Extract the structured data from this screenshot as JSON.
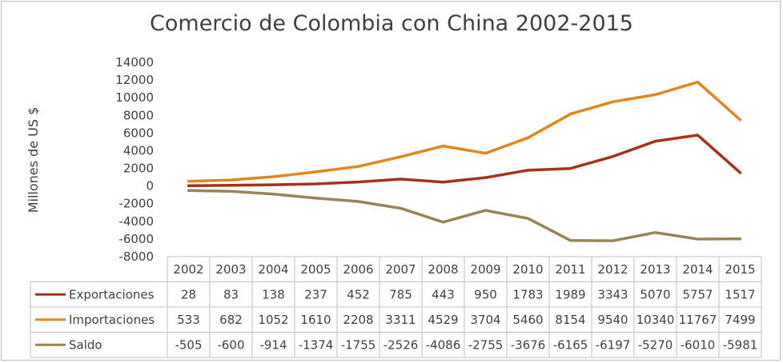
{
  "chart_data": {
    "type": "line",
    "title": "Comercio de Colombia con China 2002-2015",
    "xlabel": "",
    "ylabel": "Millones de US $",
    "ylim": [
      -8000,
      14000
    ],
    "yticks": [
      "14000",
      "12000",
      "10000",
      "8000",
      "6000",
      "4000",
      "2000",
      "0",
      "-2000",
      "-4000",
      "-6000",
      "-8000"
    ],
    "categories": [
      "2002",
      "2003",
      "2004",
      "2005",
      "2006",
      "2007",
      "2008",
      "2009",
      "2010",
      "2011",
      "2012",
      "2013",
      "2014",
      "2015"
    ],
    "series": [
      {
        "name": "Exportaciones",
        "color": "#A5321A",
        "values": [
          28,
          83,
          138,
          237,
          452,
          785,
          443,
          950,
          1783,
          1989,
          3343,
          5070,
          5757,
          1517
        ]
      },
      {
        "name": "Importaciones",
        "color": "#E0861E",
        "values": [
          533,
          682,
          1052,
          1610,
          2208,
          3311,
          4529,
          3704,
          5460,
          8154,
          9540,
          10340,
          11767,
          7499
        ]
      },
      {
        "name": "Saldo",
        "color": "#988456",
        "values": [
          -505,
          -600,
          -914,
          -1374,
          -1755,
          -2526,
          -4086,
          -2755,
          -3676,
          -6165,
          -6197,
          -5270,
          -6010,
          -5981
        ]
      }
    ],
    "grid": false,
    "legend": "data-table",
    "data_table": true
  }
}
